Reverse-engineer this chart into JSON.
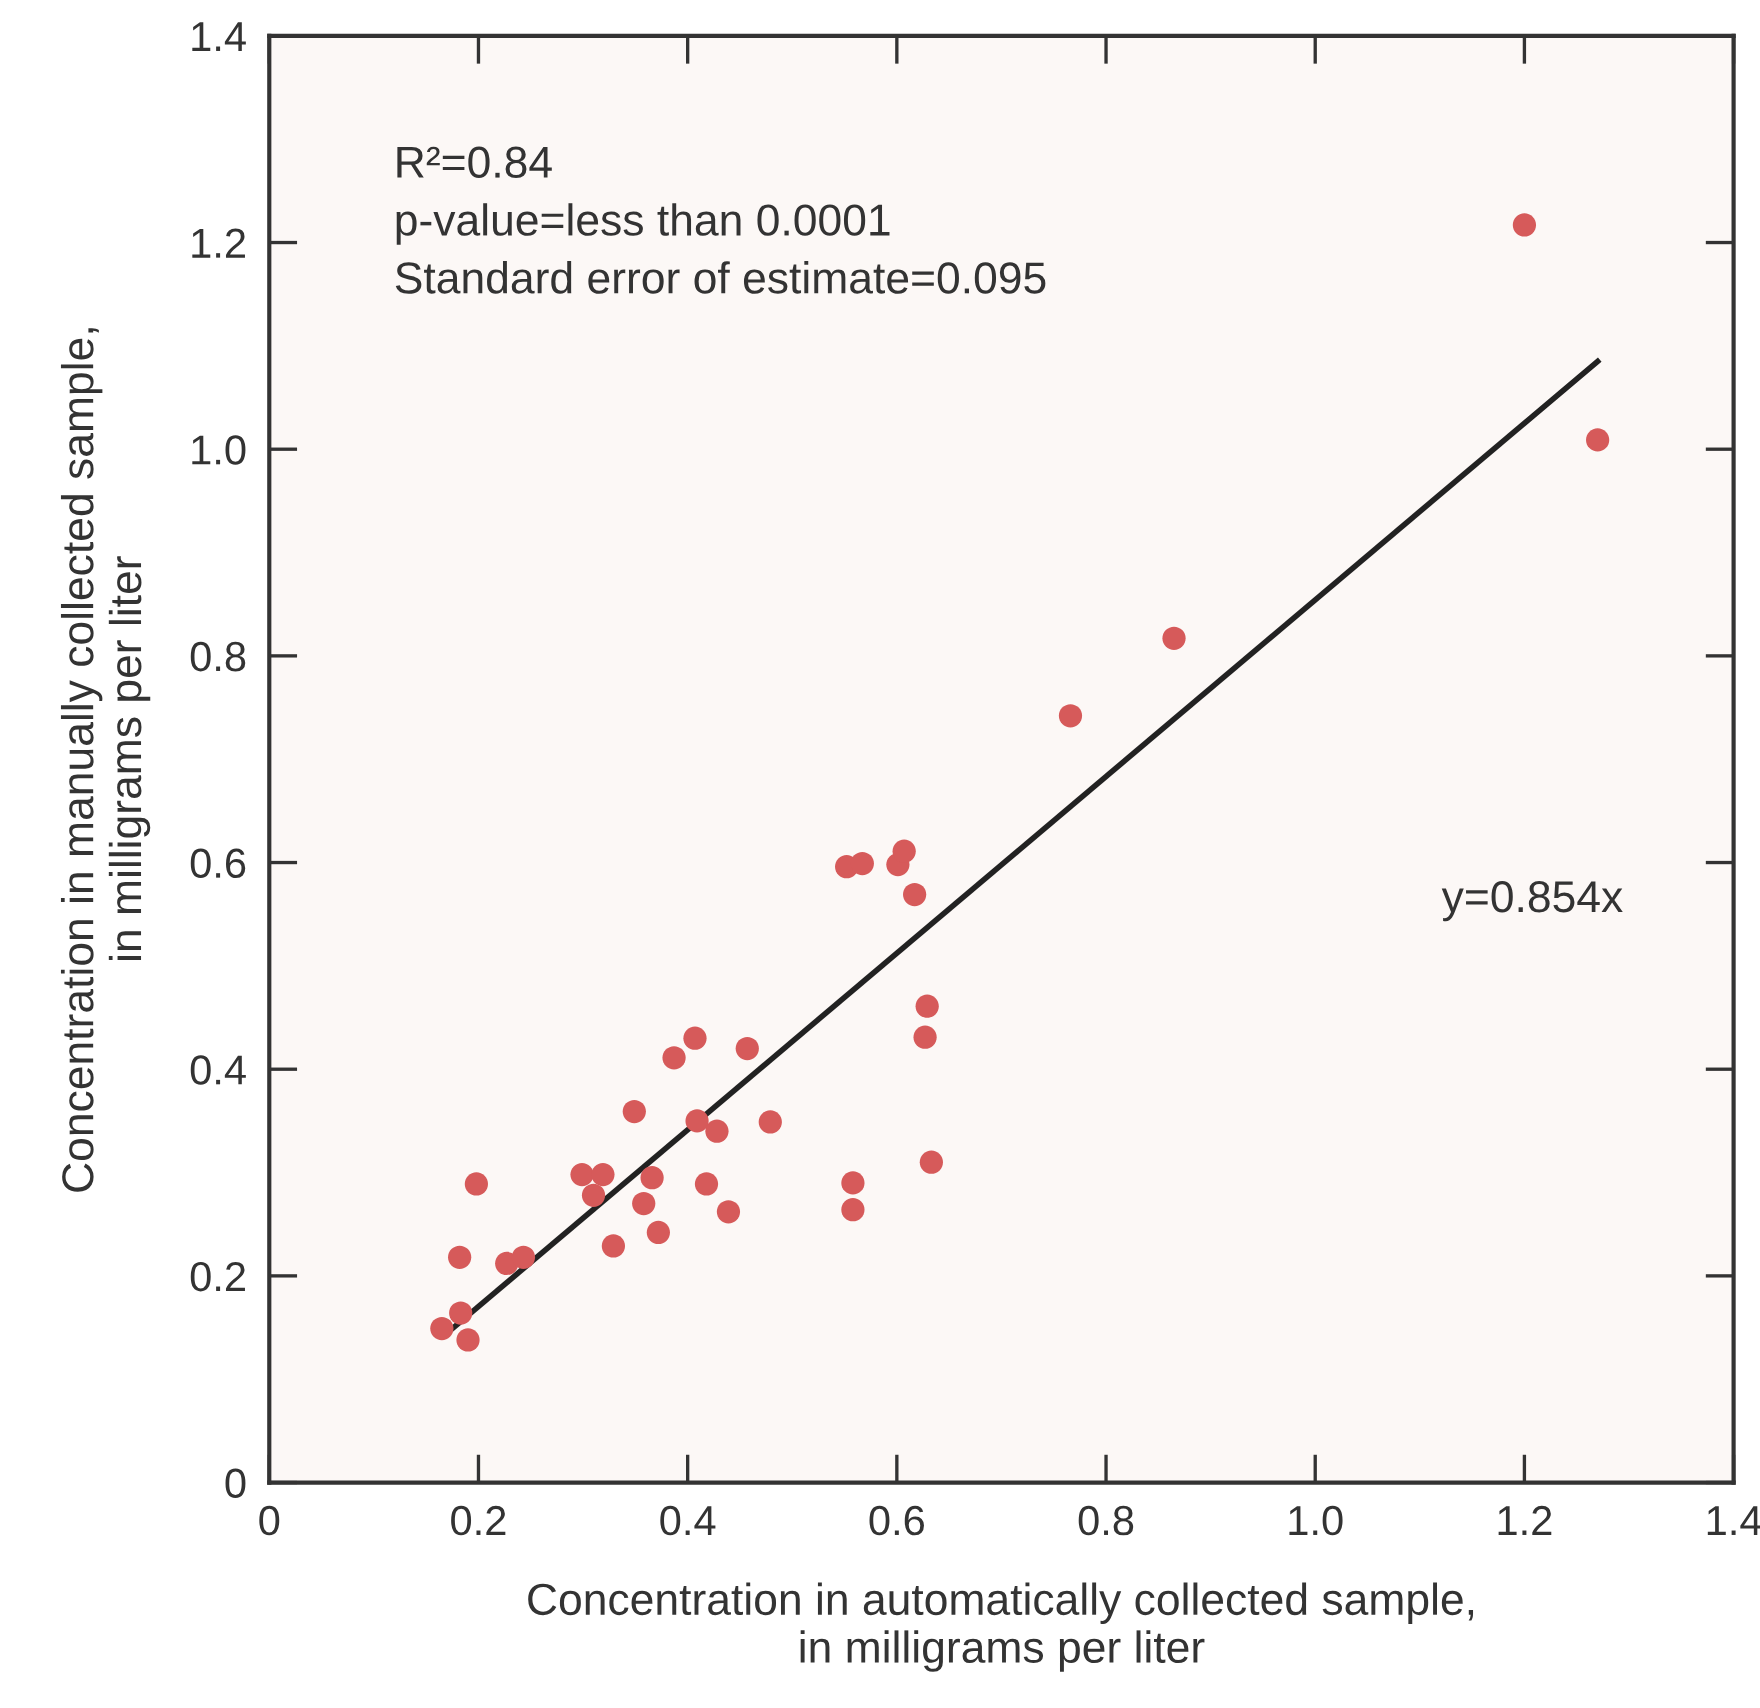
{
  "chart_data": {
    "type": "scatter",
    "xlabel": "Concentration in automatically collected sample,\nin milligrams per liter",
    "ylabel": "Concentration in manually collected sample,\nin milligrams per liter",
    "xlim": [
      0,
      1.4
    ],
    "ylim": [
      0,
      1.4
    ],
    "xticks": [
      0,
      0.2,
      0.4,
      0.6,
      0.8,
      {
        "value": 1.0,
        "label": "1.0"
      },
      1.2,
      1.4
    ],
    "yticks": [
      0,
      0.2,
      0.4,
      0.6,
      0.8,
      {
        "value": 1.0,
        "label": "1.0"
      },
      1.2,
      1.4
    ],
    "grid": false,
    "marker": "circle",
    "series": [
      {
        "color": "#d65a5a",
        "x": [
          0.165,
          0.183,
          0.19,
          0.182,
          0.198,
          0.227,
          0.243,
          0.299,
          0.319,
          0.31,
          0.329,
          0.349,
          0.358,
          0.366,
          0.372,
          0.387,
          0.407,
          0.409,
          0.428,
          0.418,
          0.439,
          0.457,
          0.479,
          0.558,
          0.558,
          0.633,
          0.627,
          0.629,
          0.552,
          0.567,
          0.601,
          0.607,
          0.617,
          0.766,
          0.865,
          1.2,
          1.27
        ],
        "values": [
          0.149,
          0.164,
          0.138,
          0.218,
          0.289,
          0.212,
          0.218,
          0.298,
          0.298,
          0.278,
          0.229,
          0.359,
          0.27,
          0.295,
          0.242,
          0.411,
          0.43,
          0.35,
          0.34,
          0.289,
          0.262,
          0.42,
          0.349,
          0.29,
          0.264,
          0.31,
          0.431,
          0.461,
          0.596,
          0.599,
          0.598,
          0.611,
          0.569,
          0.742,
          0.817,
          1.217,
          1.009
        ]
      },
      {
        "type": "line",
        "name": "y=0.854x",
        "color": "#222222",
        "line_style": "solid",
        "marker": "none",
        "x": [
          0.175,
          1.27
        ],
        "values": [
          0.149,
          1.085
        ]
      }
    ],
    "annotations": [
      "R²=0.84",
      "p-value=less than 0.0001",
      "Standard error of estimate=0.095"
    ]
  }
}
